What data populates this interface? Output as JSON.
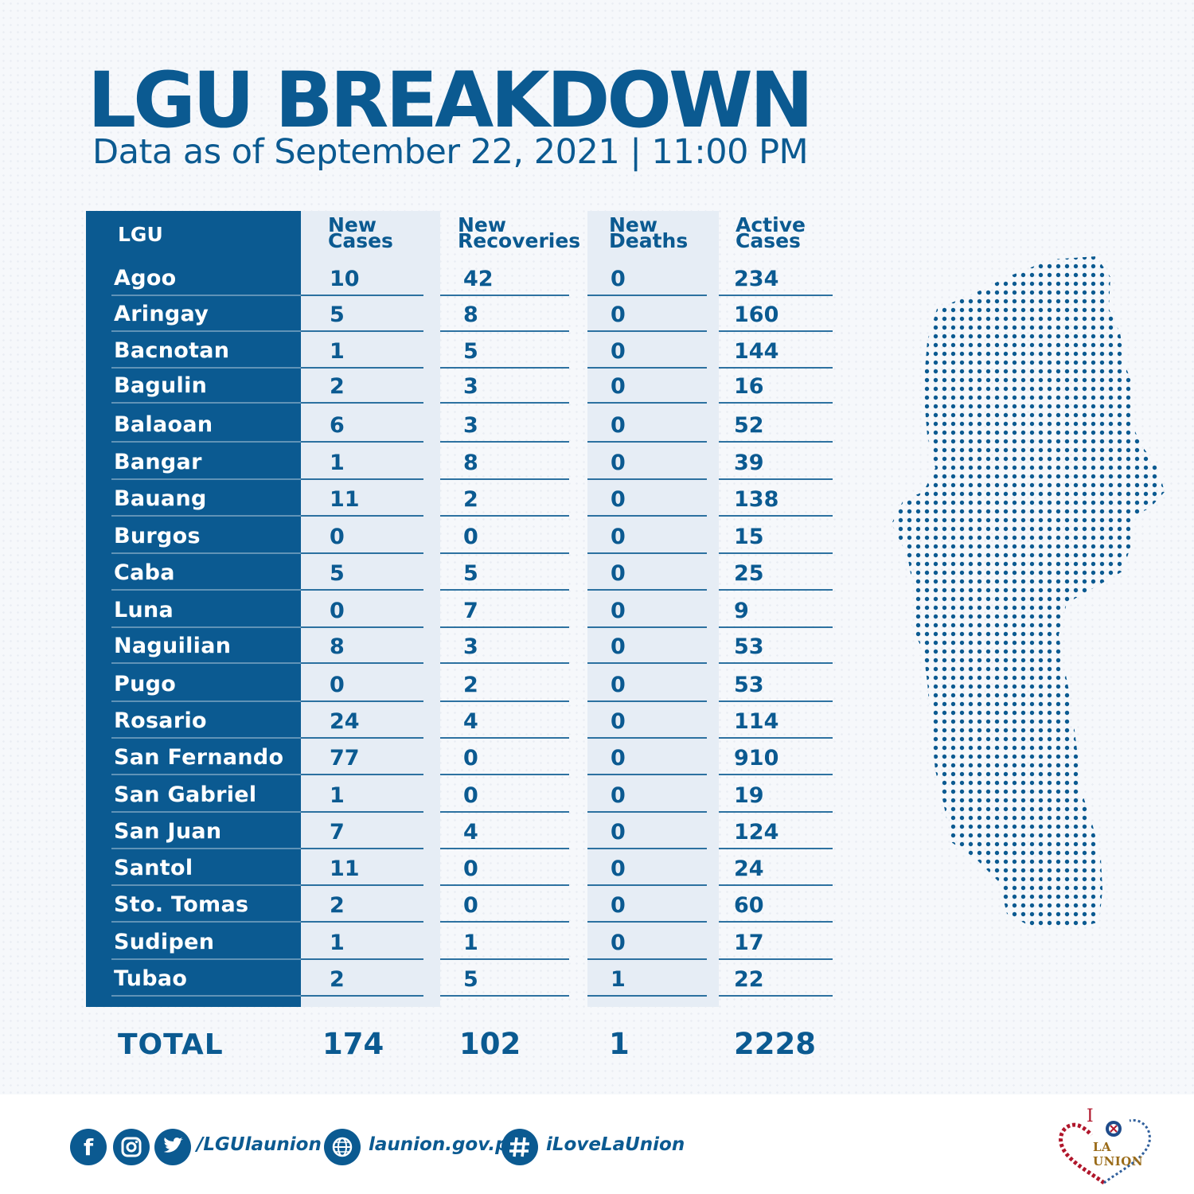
{
  "title": "LGU BREAKDOWN",
  "subtitle": "Data as of September 22, 2021 | 11:00 PM",
  "headers": {
    "lgu": "LGU",
    "new_cases": [
      "New",
      "Cases"
    ],
    "new_recoveries": [
      "New",
      "Recoveries"
    ],
    "new_deaths": [
      "New",
      "Deaths"
    ],
    "active_cases": [
      "Active",
      "Cases"
    ]
  },
  "rows": [
    {
      "lgu": "Agoo",
      "new_cases": "10",
      "new_recoveries": "42",
      "new_deaths": "0",
      "active_cases": "234"
    },
    {
      "lgu": "Aringay",
      "new_cases": "5",
      "new_recoveries": "8",
      "new_deaths": "0",
      "active_cases": "160"
    },
    {
      "lgu": "Bacnotan",
      "new_cases": "1",
      "new_recoveries": "5",
      "new_deaths": "0",
      "active_cases": "144"
    },
    {
      "lgu": "Bagulin",
      "new_cases": "2",
      "new_recoveries": "3",
      "new_deaths": "0",
      "active_cases": "16"
    },
    {
      "lgu": "Balaoan",
      "new_cases": "6",
      "new_recoveries": "3",
      "new_deaths": "0",
      "active_cases": "52"
    },
    {
      "lgu": "Bangar",
      "new_cases": "1",
      "new_recoveries": "8",
      "new_deaths": "0",
      "active_cases": "39"
    },
    {
      "lgu": "Bauang",
      "new_cases": "11",
      "new_recoveries": "2",
      "new_deaths": "0",
      "active_cases": "138"
    },
    {
      "lgu": "Burgos",
      "new_cases": "0",
      "new_recoveries": "0",
      "new_deaths": "0",
      "active_cases": "15"
    },
    {
      "lgu": "Caba",
      "new_cases": "5",
      "new_recoveries": "5",
      "new_deaths": "0",
      "active_cases": "25"
    },
    {
      "lgu": "Luna",
      "new_cases": "0",
      "new_recoveries": "7",
      "new_deaths": "0",
      "active_cases": "9"
    },
    {
      "lgu": "Naguilian",
      "new_cases": "8",
      "new_recoveries": "3",
      "new_deaths": "0",
      "active_cases": "53"
    },
    {
      "lgu": "Pugo",
      "new_cases": "0",
      "new_recoveries": "2",
      "new_deaths": "0",
      "active_cases": "53"
    },
    {
      "lgu": "Rosario",
      "new_cases": "24",
      "new_recoveries": "4",
      "new_deaths": "0",
      "active_cases": "114"
    },
    {
      "lgu": "San Fernando",
      "new_cases": "77",
      "new_recoveries": "0",
      "new_deaths": "0",
      "active_cases": "910"
    },
    {
      "lgu": "San Gabriel",
      "new_cases": "1",
      "new_recoveries": "0",
      "new_deaths": "0",
      "active_cases": "19"
    },
    {
      "lgu": "San Juan",
      "new_cases": "7",
      "new_recoveries": "4",
      "new_deaths": "0",
      "active_cases": "124"
    },
    {
      "lgu": "Santol",
      "new_cases": "11",
      "new_recoveries": "0",
      "new_deaths": "0",
      "active_cases": "24"
    },
    {
      "lgu": "Sto. Tomas",
      "new_cases": "2",
      "new_recoveries": "0",
      "new_deaths": "0",
      "active_cases": "60"
    },
    {
      "lgu": "Sudipen",
      "new_cases": "1",
      "new_recoveries": "1",
      "new_deaths": "0",
      "active_cases": "17"
    },
    {
      "lgu": "Tubao",
      "new_cases": "2",
      "new_recoveries": "5",
      "new_deaths": "1",
      "active_cases": "22"
    }
  ],
  "totals": {
    "label": "TOTAL",
    "new_cases": "174",
    "new_recoveries": "102",
    "new_deaths": "1",
    "active_cases": "2228"
  },
  "footer": {
    "social_icons": [
      "facebook-icon",
      "instagram-icon",
      "twitter-icon"
    ],
    "social_handle": "/LGUlaunion",
    "website_icon": "globe-icon",
    "website": "launion.gov.ph",
    "hashtag_icon": "hashtag-icon",
    "hashtag": "iLoveLaUnion",
    "logo_top": "I",
    "logo_text": "LA UNION"
  },
  "colors": {
    "primary": "#0b5a91",
    "stripe": "#e6edf5",
    "background": "#f6f8fb",
    "logo_red": "#b0162b",
    "logo_gold": "#9a6b18"
  }
}
